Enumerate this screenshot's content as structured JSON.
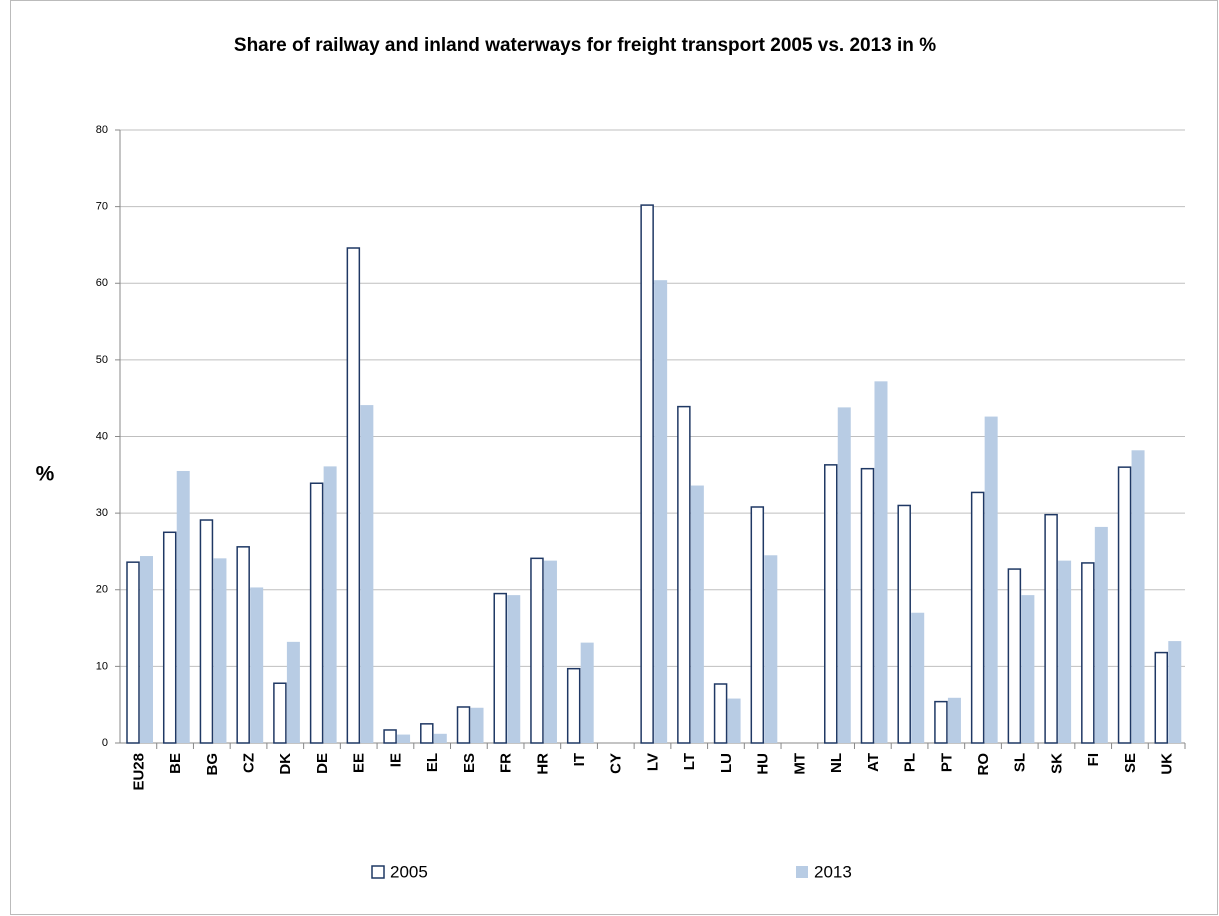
{
  "chart_data": {
    "type": "bar",
    "title": "Share of railway and inland waterways for freight transport 2005 vs. 2013 in %",
    "y_label": "%",
    "categories": [
      "EU28",
      "BE",
      "BG",
      "CZ",
      "DK",
      "DE",
      "EE",
      "IE",
      "EL",
      "ES",
      "FR",
      "HR",
      "IT",
      "CY",
      "LV",
      "LT",
      "LU",
      "HU",
      "MT",
      "NL",
      "AT",
      "PL",
      "PT",
      "RO",
      "SL",
      "SK",
      "FI",
      "SE",
      "UK"
    ],
    "series": [
      {
        "name": "2005",
        "color": "#ffffff",
        "edgecolor": "#1f3864",
        "values": [
          23.6,
          27.5,
          29.1,
          25.6,
          7.8,
          33.9,
          64.6,
          1.7,
          2.5,
          4.7,
          19.5,
          24.1,
          9.7,
          null,
          70.2,
          43.9,
          7.7,
          30.8,
          null,
          36.3,
          35.8,
          31.0,
          5.4,
          32.7,
          22.7,
          29.8,
          23.5,
          36.0,
          11.8
        ]
      },
      {
        "name": "2013",
        "color": "#b8cce4",
        "values": [
          24.4,
          35.5,
          24.1,
          20.3,
          13.2,
          36.1,
          44.1,
          1.1,
          1.2,
          4.6,
          19.3,
          23.8,
          13.1,
          null,
          60.4,
          33.6,
          5.8,
          24.5,
          null,
          43.8,
          47.2,
          17.0,
          5.9,
          42.6,
          19.3,
          23.8,
          28.2,
          38.2,
          13.3
        ]
      }
    ],
    "ylim": [
      0,
      80
    ],
    "yticks": [
      0,
      10,
      20,
      30,
      40,
      50,
      60,
      70,
      80
    ],
    "grid": true,
    "legend": "bottom"
  }
}
